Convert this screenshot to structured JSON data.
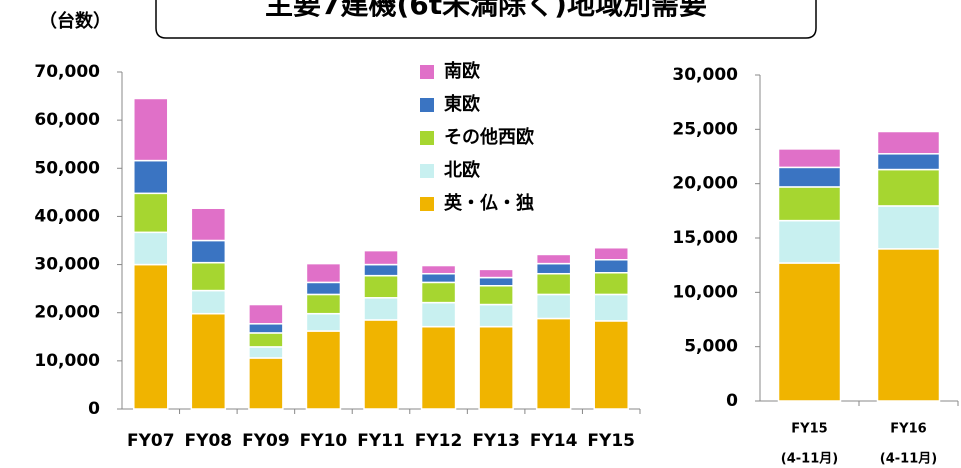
{
  "unit_label": "（台数）",
  "title": "主要7建機(6t未満除く)地域別需要",
  "chart_data": [
    {
      "type": "stacked_bar",
      "categories": [
        "FY07",
        "FY08",
        "FY09",
        "FY10",
        "FY11",
        "FY12",
        "FY13",
        "FY14",
        "FY15"
      ],
      "series": [
        {
          "name": "英・仏・独",
          "color": "#f0b400",
          "values": [
            30000,
            19800,
            10600,
            16200,
            18500,
            17100,
            17100,
            18800,
            18300
          ]
        },
        {
          "name": "北欧",
          "color": "#c8f0f0",
          "values": [
            6700,
            4800,
            2300,
            3600,
            4600,
            5000,
            4600,
            5000,
            5500
          ]
        },
        {
          "name": "その他西欧",
          "color": "#a6d630",
          "values": [
            8100,
            5800,
            2900,
            4000,
            4600,
            4200,
            3900,
            4300,
            4500
          ]
        },
        {
          "name": "東欧",
          "color": "#3a74c2",
          "values": [
            6800,
            4600,
            1900,
            2500,
            2300,
            1800,
            1700,
            2100,
            2700
          ]
        },
        {
          "name": "南欧",
          "color": "#e070c8",
          "values": [
            12900,
            6700,
            4000,
            3900,
            2900,
            1700,
            1700,
            1900,
            2500
          ]
        }
      ],
      "ylim": [
        0,
        70000
      ],
      "yticks": [
        0,
        {
          "value": 10000,
          "label": "10,000"
        },
        {
          "value": 20000,
          "label": "20,000"
        },
        {
          "value": 30000,
          "label": "30,000"
        },
        {
          "value": 40000,
          "label": "40,000"
        },
        {
          "value": 50000,
          "label": "50,000"
        },
        {
          "value": 60000,
          "label": "60,000"
        },
        {
          "value": 70000,
          "label": "70,000"
        }
      ],
      "legend": "top-right"
    },
    {
      "type": "stacked_bar",
      "categories": [
        "FY15",
        "FY16"
      ],
      "subcategories": [
        "(4-11月)",
        "(4-11月)"
      ],
      "series": [
        {
          "name": "英・仏・独",
          "color": "#f0b400",
          "values": [
            12700,
            14000
          ]
        },
        {
          "name": "北欧",
          "color": "#c8f0f0",
          "values": [
            3900,
            3950
          ]
        },
        {
          "name": "その他西欧",
          "color": "#a6d630",
          "values": [
            3100,
            3350
          ]
        },
        {
          "name": "東欧",
          "color": "#3a74c2",
          "values": [
            1800,
            1450
          ]
        },
        {
          "name": "南欧",
          "color": "#e070c8",
          "values": [
            1700,
            2050
          ]
        }
      ],
      "ylim": [
        0,
        30000
      ],
      "yticks": [
        0,
        {
          "value": 5000,
          "label": "5,000"
        },
        {
          "value": 10000,
          "label": "10,000"
        },
        {
          "value": 15000,
          "label": "15,000"
        },
        {
          "value": 20000,
          "label": "20,000"
        },
        {
          "value": 25000,
          "label": "25,000"
        },
        {
          "value": 30000,
          "label": "30,000"
        }
      ]
    }
  ]
}
